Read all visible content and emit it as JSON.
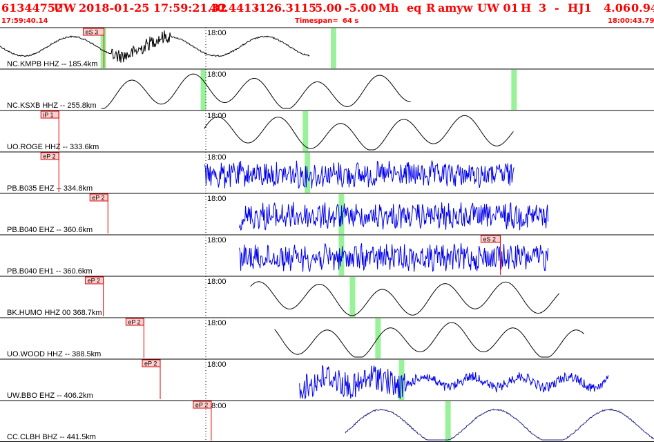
{
  "header": {
    "event_id": "61344752",
    "network": "UW",
    "datetime": "2018-01-25 17:59:21.32",
    "lat": "40.4413",
    "lon": "-126.3115",
    "depth": "5.00",
    "magnitude": "-5.00",
    "mag_type": "Mh",
    "event_type": "eq",
    "review": "R",
    "subsource": "amyw",
    "agency_version": "UW 01",
    "h_code": "H",
    "count": "3",
    "dash": "-",
    "h_code2": "H",
    "j_code": "J1",
    "value1": "4.06",
    "value2": "0.94",
    "start_time": "17:59:40.14",
    "timespan_label": "Timespan=",
    "timespan_value": "64 s",
    "end_time": "18:00:43.79"
  },
  "colors": {
    "header_text": "#ff0000",
    "phase_marker": "#e00000",
    "phase_fill": "#ffd0d0",
    "trace_black": "#000000",
    "trace_blue": "#0000ee",
    "trace_navy": "#202080",
    "green_band": "#99f299",
    "divider": "#000000"
  },
  "minute_label": "18:00",
  "channels": [
    {
      "label": "NC.KMPB HHZ -- 185.4km",
      "color": "black",
      "style": "lowfreq",
      "trace_start": 0.0,
      "trace_end": 0.473,
      "has_minute": true,
      "greens": [
        0.158,
        0.51
      ],
      "phases": [
        {
          "text": "eS 3",
          "x": 0.159,
          "box_w": 30
        }
      ]
    },
    {
      "label": "NC.KSXB HHZ -- 255.8km",
      "color": "black",
      "style": "smooth",
      "trace_start": 0.155,
      "trace_end": 0.628,
      "has_minute": true,
      "greens": [
        0.311,
        0.786
      ],
      "phases": []
    },
    {
      "label": "UO.ROGE HHZ -- 333.6km",
      "color": "black",
      "style": "smooth",
      "trace_start": 0.312,
      "trace_end": 0.785,
      "has_minute": true,
      "greens": [
        0.467
      ],
      "phases": [
        {
          "text": "iP 1",
          "x": 0.09,
          "box_w": 26
        }
      ]
    },
    {
      "label": "PB.B035 EHZ -- 334.8km",
      "color": "blue",
      "style": "noise",
      "trace_start": 0.313,
      "trace_end": 0.786,
      "has_minute": true,
      "greens": [
        0.47
      ],
      "phases": [
        {
          "text": "eP 2",
          "x": 0.09,
          "box_w": 26
        }
      ]
    },
    {
      "label": "PB.B040 EHZ -- 360.6km",
      "color": "blue",
      "style": "noise",
      "trace_start": 0.366,
      "trace_end": 0.838,
      "has_minute": true,
      "greens": [
        0.522
      ],
      "phases": [
        {
          "text": "eP 2",
          "x": 0.165,
          "box_w": 26
        }
      ]
    },
    {
      "label": "PB.B040 EH1 -- 360.6km",
      "color": "blue",
      "style": "noise",
      "trace_start": 0.366,
      "trace_end": 0.838,
      "has_minute": true,
      "greens": [
        0.522
      ],
      "phases": [
        {
          "text": "eS 2",
          "x": 0.765,
          "box_w": 28
        }
      ]
    },
    {
      "label": "BK.HUMO HHZ 00 368.7km",
      "color": "black",
      "style": "smooth",
      "trace_start": 0.383,
      "trace_end": 0.855,
      "has_minute": true,
      "greens": [
        0.539
      ],
      "phases": [
        {
          "text": "eP 2",
          "x": 0.158,
          "box_w": 26
        }
      ]
    },
    {
      "label": "UO.WOOD HHZ -- 388.5km",
      "color": "black",
      "style": "smooth",
      "trace_start": 0.42,
      "trace_end": 0.893,
      "has_minute": true,
      "greens": [
        0.578
      ],
      "phases": [
        {
          "text": "eP 2",
          "x": 0.22,
          "box_w": 26
        }
      ]
    },
    {
      "label": "UW.BBO EHZ -- 406.2km",
      "color": "blue",
      "style": "mixed",
      "trace_start": 0.458,
      "trace_end": 0.93,
      "has_minute": true,
      "greens": [
        0.614
      ],
      "phases": [
        {
          "text": "eP 2",
          "x": 0.245,
          "box_w": 26
        }
      ]
    },
    {
      "label": "CC.CLBH BHZ -- 441.5km",
      "color": "navy",
      "style": "slow",
      "trace_start": 0.528,
      "trace_end": 1.0,
      "has_minute": true,
      "greens": [
        0.685
      ],
      "phases": [
        {
          "text": "eP 2",
          "x": 0.323,
          "box_w": 26
        }
      ]
    }
  ]
}
